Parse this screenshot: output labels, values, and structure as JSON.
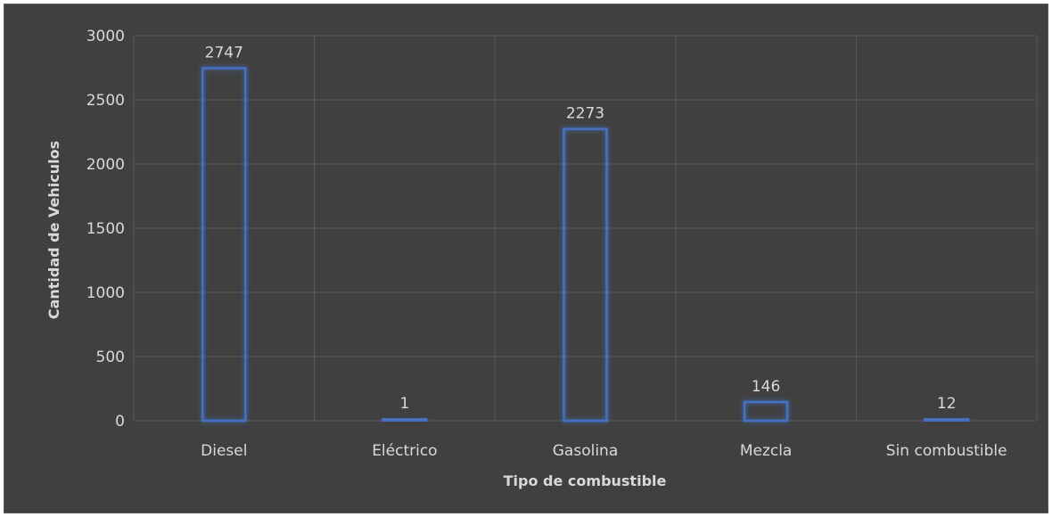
{
  "chart_data": {
    "type": "bar",
    "title": "",
    "xlabel": "Tipo de combustible",
    "ylabel": "Cantidad de Vehiculos",
    "categories": [
      "Diesel",
      "Eléctrico",
      "Gasolina",
      "Mezcla",
      "Sin combustible"
    ],
    "values": [
      2747,
      1,
      2273,
      146,
      12
    ],
    "data_labels": [
      "2747",
      "1",
      "2273",
      "146",
      "12"
    ],
    "ylim": [
      0,
      3000
    ],
    "yticks": [
      0,
      500,
      1000,
      1500,
      2000,
      2500,
      3000
    ],
    "ytick_labels": [
      "0",
      "500",
      "1000",
      "1500",
      "2000",
      "2500",
      "3000"
    ],
    "grid": true,
    "legend": "none",
    "colors": {
      "background": "#404040",
      "bar_outline": "#4472c4",
      "bar_glow": "#3a6bd8",
      "text": "#d9d9d9",
      "grid": "#5a5a5a"
    }
  }
}
